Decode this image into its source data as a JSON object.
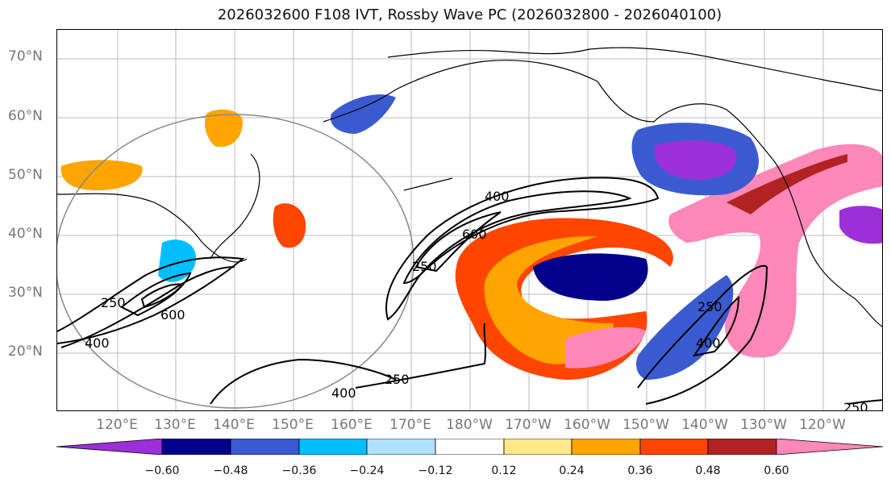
{
  "title": "2026032600 F108 IVT, Rossby Wave PC (2026032800 - 2026040100)",
  "lat_labels": [
    "70°N",
    "60°N",
    "50°N",
    "40°N",
    "30°N",
    "20°N"
  ],
  "lon_labels": [
    "120°E",
    "130°E",
    "140°E",
    "150°E",
    "160°E",
    "170°E",
    "180°W",
    "170°W",
    "160°W",
    "150°W",
    "140°W",
    "130°W",
    "120°W"
  ],
  "contour_labels": [
    "250",
    "400",
    "600",
    "250",
    "400",
    "600",
    "400",
    "250",
    "250",
    "400",
    "250"
  ],
  "colorbar": {
    "ticks": [
      "−0.60",
      "−0.48",
      "−0.36",
      "−0.24",
      "−0.12",
      "0.12",
      "0.24",
      "0.36",
      "0.48",
      "0.60"
    ],
    "colors": [
      "#9b30d8",
      "#00008b",
      "#3a5bd0",
      "#00bfff",
      "#b0e2ff",
      "#ffffff",
      "#ffe88a",
      "#ffa500",
      "#ff4500",
      "#b22222",
      "#ff88b8"
    ]
  }
}
